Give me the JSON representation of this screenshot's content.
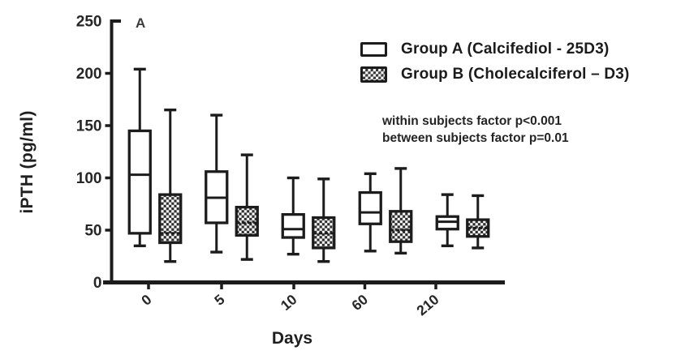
{
  "figure": {
    "panel_label": "A",
    "legend": [
      {
        "label": "Group A (Calcifediol - 25D3)",
        "marker": "open-box-icon"
      },
      {
        "label": "Group B (Cholecalciferol – D3)",
        "marker": "checkered-box-icon"
      }
    ],
    "annotations": [
      "within subjects factor p<0.001",
      "between subjects factor p=0.01"
    ],
    "colors": {
      "ink": "#1c1c1c",
      "text": "#262626",
      "background": "#ffffff"
    }
  },
  "chart_data": {
    "type": "box",
    "title": "",
    "xlabel": "Days",
    "ylabel": "iPTH (pg/ml)",
    "ylim": [
      0,
      250
    ],
    "yticks": [
      0,
      50,
      100,
      150,
      200,
      250
    ],
    "categories": [
      "0",
      "5",
      "10",
      "60",
      "210"
    ],
    "grid": false,
    "legend_position": "top-right",
    "series": [
      {
        "name": "Group A (Calcifediol - 25D3)",
        "style": "open",
        "boxes": [
          {
            "min": 35,
            "q1": 47,
            "median": 103,
            "q3": 145,
            "max": 204
          },
          {
            "min": 29,
            "q1": 57,
            "median": 81,
            "q3": 106,
            "max": 160
          },
          {
            "min": 27,
            "q1": 43,
            "median": 51,
            "q3": 65,
            "max": 100
          },
          {
            "min": 30,
            "q1": 56,
            "median": 67,
            "q3": 86,
            "max": 104
          },
          {
            "min": 35,
            "q1": 51,
            "median": 58,
            "q3": 63,
            "max": 84
          }
        ]
      },
      {
        "name": "Group B (Cholecalciferol – D3)",
        "style": "checkered",
        "boxes": [
          {
            "min": 20,
            "q1": 38,
            "median": 47,
            "q3": 84,
            "max": 165
          },
          {
            "min": 22,
            "q1": 45,
            "median": 57,
            "q3": 72,
            "max": 122
          },
          {
            "min": 20,
            "q1": 33,
            "median": 47,
            "q3": 62,
            "max": 99
          },
          {
            "min": 28,
            "q1": 39,
            "median": 50,
            "q3": 68,
            "max": 109
          },
          {
            "min": 33,
            "q1": 44,
            "median": 52,
            "q3": 60,
            "max": 83
          }
        ]
      }
    ],
    "stat_annotations": [
      "within subjects factor p<0.001",
      "between subjects factor p=0.01"
    ]
  }
}
